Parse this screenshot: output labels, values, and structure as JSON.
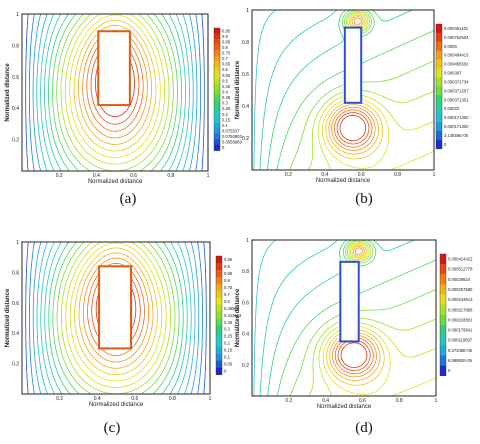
{
  "colors": {
    "frame": "#222222",
    "obstacle_fill": "#ffffff",
    "obstacle_border_a": "#e05a10",
    "obstacle_border_b": "#2a4fd8",
    "colormap": [
      "#1a2bd6",
      "#1f8fe0",
      "#23c8d0",
      "#2fd07a",
      "#8fe02a",
      "#e6e31a",
      "#f5a81a",
      "#ef5a14",
      "#d41a10"
    ]
  },
  "panels": [
    {
      "caption": "(a)",
      "ylabel": "Normalized distance",
      "xlabel": "Normalized distance",
      "kind": "symmetric",
      "cb_labels": [
        "0.95",
        "0.9",
        "0.85",
        "0.8",
        "0.75",
        "0.7",
        "0.65",
        "0.6",
        "0.55",
        "0.5",
        "0.45",
        "0.4",
        "0.35",
        "0.3",
        "0.25",
        "0.2",
        "0.15",
        "0.1",
        "0.075537",
        "0.0750803",
        "0.0556969",
        "0"
      ]
    },
    {
      "caption": "(b)",
      "ylabel": "Normalized distance",
      "xlabel": "Normalized distance",
      "kind": "asym",
      "cb_labels": [
        "0.000461161",
        "0.000762504",
        "0.0006",
        "0.000484413",
        "0.000455502",
        "0.000397",
        "0.000372734",
        "0.000371207",
        "0.000371301",
        "0.00022",
        "0.000171400",
        "0.000171400",
        "3.14659E-05",
        "0"
      ]
    },
    {
      "caption": "(c)",
      "ylabel": "Normalized distance",
      "xlabel": "Normalized distance",
      "kind": "symmetric",
      "cb_labels": [
        "0.95",
        "0.9",
        "0.85",
        "0.8",
        "0.75",
        "0.7",
        "0.6",
        "0.45503",
        "0.413113",
        "0.35",
        "0.3",
        "0.25",
        "0.2",
        "0.15",
        "0.1",
        "0.05",
        "0"
      ]
    },
    {
      "caption": "(d)",
      "ylabel": "Normalized distance",
      "xlabel": "Normalized distance",
      "kind": "asym",
      "cb_labels": [
        "0.000414422",
        "0.000512778",
        "0.00029824",
        "0.000257585",
        "0.000243613",
        "0.000217896",
        "0.000218801",
        "0.000179641",
        "0.000119567",
        "9.37345E-05",
        "6.58982E-05",
        "0"
      ]
    }
  ],
  "chart_data": [
    {
      "type": "contour",
      "title": "",
      "xlabel": "Normalized distance",
      "ylabel": "Normalized distance",
      "xlim": [
        0,
        1
      ],
      "ylim": [
        0,
        1
      ],
      "xticks": [
        "0.2",
        "0.4",
        "0.6",
        "0.8",
        "1"
      ],
      "yticks": [
        "0.2",
        "0.4",
        "0.6",
        "0.8",
        "1"
      ],
      "colorbar": [
        "0.95",
        "0.9",
        "0.85",
        "0.8",
        "0.75",
        "0.7",
        "0.65",
        "0.6",
        "0.55",
        "0.5",
        "0.45",
        "0.4",
        "0.35",
        "0.3",
        "0.25",
        "0.2",
        "0.15",
        "0.1",
        "0.075537",
        "0.0750803",
        "0.0556969",
        "0"
      ]
    },
    {
      "type": "contour",
      "title": "",
      "xlabel": "Normalized distance",
      "ylabel": "Normalized distance",
      "xlim": [
        0,
        1
      ],
      "ylim": [
        0,
        1
      ],
      "xticks": [
        "0.2",
        "0.4",
        "0.6",
        "0.8",
        "1"
      ],
      "yticks": [
        "0.2",
        "0.4",
        "0.6",
        "0.8",
        "1"
      ],
      "colorbar": [
        "0.000461161",
        "0.000762504",
        "0.0006",
        "0.000484413",
        "0.000455502",
        "0.000397",
        "0.000372734",
        "0.000371207",
        "0.000371301",
        "0.00022",
        "0.000171400",
        "0.000171400",
        "3.14659E-05",
        "0"
      ]
    },
    {
      "type": "contour",
      "title": "",
      "xlabel": "Normalized distance",
      "ylabel": "Normalized distance",
      "xlim": [
        0,
        1
      ],
      "ylim": [
        0,
        1
      ],
      "xticks": [
        "0.2",
        "0.4",
        "0.6",
        "0.8",
        "1"
      ],
      "yticks": [
        "0.2",
        "0.4",
        "0.6",
        "0.8",
        "1"
      ],
      "colorbar": [
        "0.95",
        "0.9",
        "0.85",
        "0.8",
        "0.75",
        "0.7",
        "0.6",
        "0.45503",
        "0.413113",
        "0.35",
        "0.3",
        "0.25",
        "0.2",
        "0.15",
        "0.1",
        "0.05",
        "0"
      ]
    },
    {
      "type": "contour",
      "title": "",
      "xlabel": "Normalized distance",
      "ylabel": "Normalized distance",
      "xlim": [
        0,
        1
      ],
      "ylim": [
        0,
        1
      ],
      "xticks": [
        "0.2",
        "0.4",
        "0.6",
        "0.8",
        "1"
      ],
      "yticks": [
        "0.2",
        "0.4",
        "0.6",
        "0.8",
        "1"
      ],
      "colorbar": [
        "0.000414422",
        "0.000512778",
        "0.00029824",
        "0.000257585",
        "0.000243613",
        "0.000217896",
        "0.000218801",
        "0.000179641",
        "0.000119567",
        "9.37345E-05",
        "6.58982E-05",
        "0"
      ]
    }
  ]
}
